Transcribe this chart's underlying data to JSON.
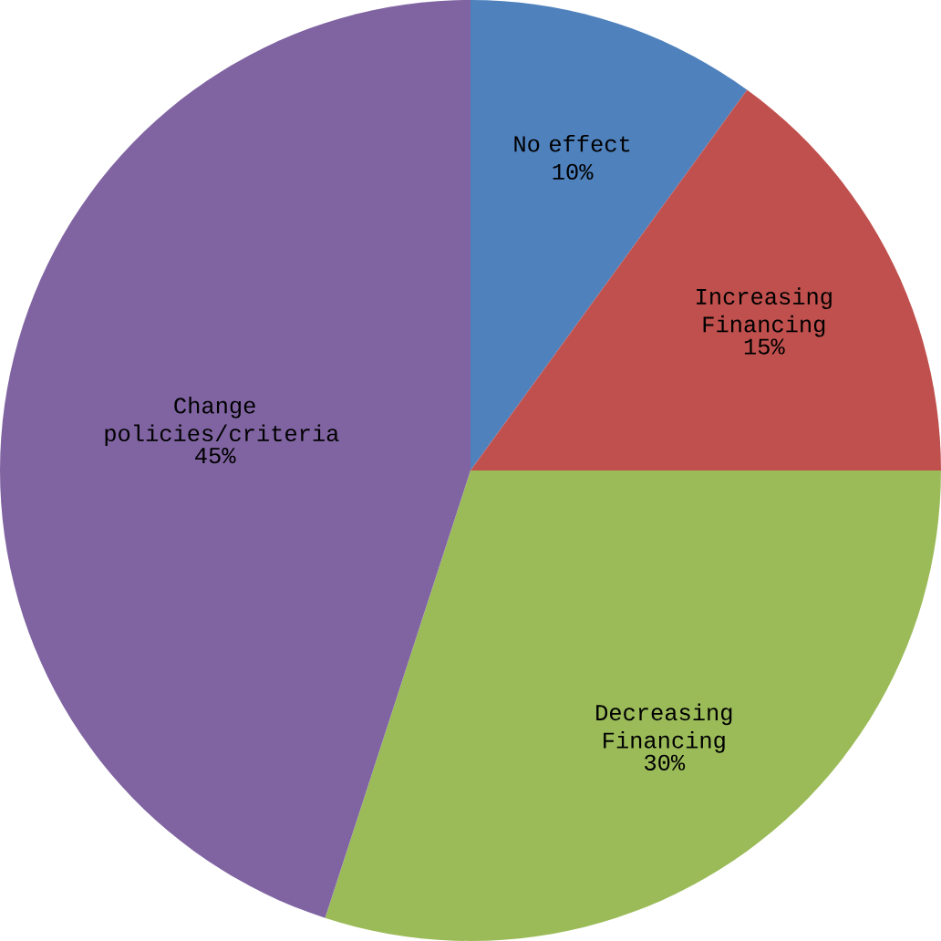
{
  "chart_data": {
    "type": "pie",
    "categories": [
      "No effect",
      "Increasing Financing",
      "Decreasing Financing",
      "Change policies/criteria"
    ],
    "values": [
      10,
      15,
      30,
      45
    ],
    "value_labels": [
      "10%",
      "15%",
      "30%",
      "45%"
    ],
    "colors": [
      "#4f81bd",
      "#c0504d",
      "#9bbb59",
      "#8064a2"
    ]
  }
}
